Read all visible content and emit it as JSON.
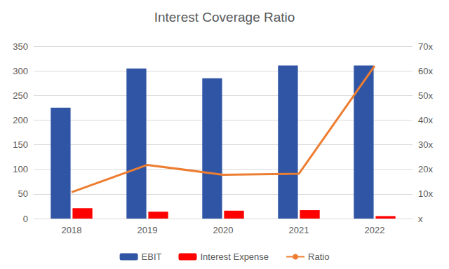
{
  "chart_data": {
    "type": "bar",
    "title": "Interest Coverage Ratio",
    "categories": [
      "2018",
      "2019",
      "2020",
      "2021",
      "2022"
    ],
    "series": [
      {
        "name": "EBIT",
        "color": "#2f55a4",
        "values": [
          225,
          305,
          285,
          311,
          311
        ]
      },
      {
        "name": "Interest Expense",
        "color": "#ff0000",
        "values": [
          21,
          14,
          16,
          17,
          5
        ]
      },
      {
        "name": "Ratio",
        "color": "#ed7d31",
        "type": "line",
        "axis": "y2",
        "values": [
          10.7,
          21.8,
          17.8,
          18.2,
          62
        ]
      }
    ],
    "ylim": [
      0,
      350
    ],
    "yticks": [
      0,
      50,
      100,
      150,
      200,
      250,
      300,
      350
    ],
    "y2lim": [
      0,
      70
    ],
    "y2ticks": [
      {
        "value": 0,
        "label": "x"
      },
      {
        "value": 10,
        "label": "10x"
      },
      {
        "value": 20,
        "label": "20x"
      },
      {
        "value": 30,
        "label": "30x"
      },
      {
        "value": 40,
        "label": "40x"
      },
      {
        "value": 50,
        "label": "50x"
      },
      {
        "value": 60,
        "label": "60x"
      },
      {
        "value": 70,
        "label": "70x"
      }
    ],
    "grid": true,
    "legend": "bottom"
  }
}
